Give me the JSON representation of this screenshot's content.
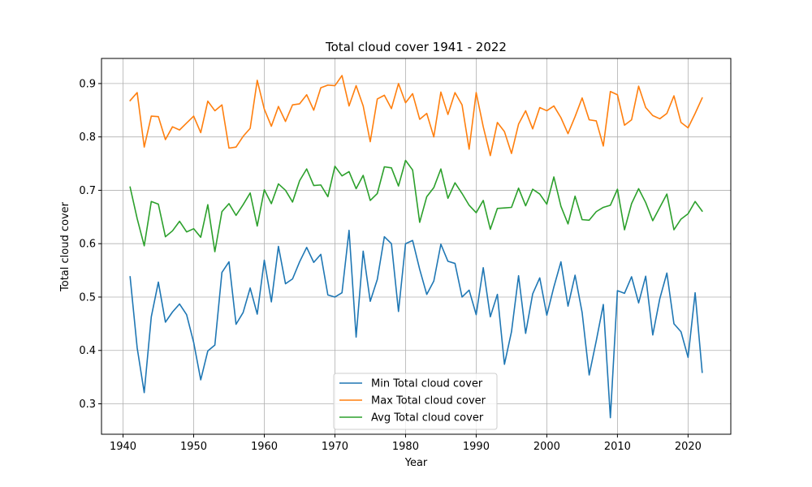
{
  "chart_data": {
    "type": "line",
    "title": "Total cloud cover 1941 - 2022",
    "xlabel": "Year",
    "ylabel": "Total cloud cover",
    "xlim": [
      1936.95,
      2026.05
    ],
    "ylim": [
      0.243,
      0.947
    ],
    "xticks": [
      1940,
      1950,
      1960,
      1970,
      1980,
      1990,
      2000,
      2010,
      2020
    ],
    "yticks": [
      0.3,
      0.4,
      0.5,
      0.6,
      0.7,
      0.8,
      0.9
    ],
    "grid": true,
    "legend_position": "lower center",
    "x": [
      1941,
      1942,
      1943,
      1944,
      1945,
      1946,
      1947,
      1948,
      1949,
      1950,
      1951,
      1952,
      1953,
      1954,
      1955,
      1956,
      1957,
      1958,
      1959,
      1960,
      1961,
      1962,
      1963,
      1964,
      1965,
      1966,
      1967,
      1968,
      1969,
      1970,
      1971,
      1972,
      1973,
      1974,
      1975,
      1976,
      1977,
      1978,
      1979,
      1980,
      1981,
      1982,
      1983,
      1984,
      1985,
      1986,
      1987,
      1988,
      1989,
      1990,
      1991,
      1992,
      1993,
      1994,
      1995,
      1996,
      1997,
      1998,
      1999,
      2000,
      2001,
      2002,
      2003,
      2004,
      2005,
      2006,
      2007,
      2008,
      2009,
      2010,
      2011,
      2012,
      2013,
      2014,
      2015,
      2016,
      2017,
      2018,
      2019,
      2020,
      2021,
      2022
    ],
    "series": [
      {
        "name": "Min Total cloud cover",
        "color": "#1f77b4",
        "values": [
          0.538,
          0.405,
          0.321,
          0.463,
          0.528,
          0.453,
          0.472,
          0.487,
          0.467,
          0.415,
          0.345,
          0.399,
          0.41,
          0.546,
          0.566,
          0.449,
          0.471,
          0.517,
          0.468,
          0.569,
          0.491,
          0.595,
          0.525,
          0.534,
          0.566,
          0.593,
          0.565,
          0.58,
          0.504,
          0.5,
          0.508,
          0.625,
          0.425,
          0.586,
          0.492,
          0.533,
          0.613,
          0.6,
          0.473,
          0.6,
          0.606,
          0.552,
          0.505,
          0.53,
          0.599,
          0.567,
          0.563,
          0.5,
          0.513,
          0.467,
          0.555,
          0.463,
          0.505,
          0.374,
          0.435,
          0.54,
          0.432,
          0.506,
          0.536,
          0.466,
          0.519,
          0.566,
          0.483,
          0.541,
          0.471,
          0.354,
          0.418,
          0.486,
          0.274,
          0.512,
          0.507,
          0.538,
          0.489,
          0.539,
          0.429,
          0.497,
          0.545,
          0.45,
          0.435,
          0.387,
          0.508,
          0.359
        ]
      },
      {
        "name": "Max Total cloud cover",
        "color": "#ff7f0e",
        "values": [
          0.868,
          0.883,
          0.781,
          0.839,
          0.838,
          0.795,
          0.819,
          0.813,
          0.826,
          0.839,
          0.808,
          0.867,
          0.849,
          0.86,
          0.779,
          0.781,
          0.801,
          0.816,
          0.906,
          0.852,
          0.82,
          0.857,
          0.829,
          0.86,
          0.862,
          0.879,
          0.85,
          0.892,
          0.897,
          0.896,
          0.915,
          0.858,
          0.896,
          0.858,
          0.791,
          0.871,
          0.878,
          0.853,
          0.9,
          0.864,
          0.881,
          0.833,
          0.844,
          0.8,
          0.884,
          0.842,
          0.883,
          0.86,
          0.777,
          0.883,
          0.819,
          0.765,
          0.827,
          0.81,
          0.769,
          0.824,
          0.849,
          0.815,
          0.855,
          0.849,
          0.858,
          0.836,
          0.806,
          0.838,
          0.873,
          0.832,
          0.83,
          0.783,
          0.885,
          0.879,
          0.822,
          0.832,
          0.895,
          0.855,
          0.84,
          0.834,
          0.844,
          0.877,
          0.827,
          0.817,
          0.844,
          0.873
        ]
      },
      {
        "name": "Avg Total cloud cover",
        "color": "#2ca02c",
        "values": [
          0.706,
          0.647,
          0.596,
          0.679,
          0.674,
          0.613,
          0.624,
          0.642,
          0.622,
          0.628,
          0.612,
          0.673,
          0.585,
          0.66,
          0.675,
          0.653,
          0.673,
          0.695,
          0.633,
          0.701,
          0.675,
          0.712,
          0.7,
          0.678,
          0.718,
          0.74,
          0.709,
          0.71,
          0.688,
          0.745,
          0.727,
          0.735,
          0.703,
          0.728,
          0.681,
          0.694,
          0.744,
          0.742,
          0.708,
          0.756,
          0.738,
          0.64,
          0.688,
          0.705,
          0.74,
          0.685,
          0.714,
          0.694,
          0.672,
          0.658,
          0.681,
          0.627,
          0.666,
          0.667,
          0.668,
          0.704,
          0.671,
          0.702,
          0.693,
          0.674,
          0.725,
          0.67,
          0.637,
          0.689,
          0.645,
          0.644,
          0.66,
          0.668,
          0.672,
          0.702,
          0.626,
          0.675,
          0.703,
          0.677,
          0.643,
          0.668,
          0.693,
          0.626,
          0.646,
          0.656,
          0.679,
          0.661
        ]
      }
    ]
  }
}
